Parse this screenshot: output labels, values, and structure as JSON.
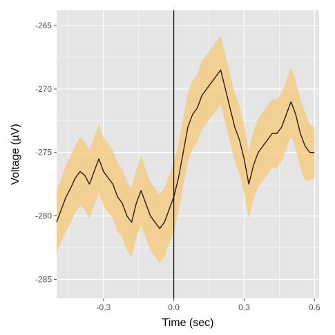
{
  "chart_data": {
    "type": "line",
    "xlabel": "Time (sec)",
    "ylabel": "Voltage (µV)",
    "xlim": [
      -0.5,
      0.62
    ],
    "ylim": [
      -286.5,
      -263.8
    ],
    "x_ticks": [
      -0.3,
      0.0,
      0.3,
      0.6
    ],
    "x_tick_labels": [
      "-0.3",
      "0.0",
      "0.3",
      "0.6"
    ],
    "y_ticks": [
      -265,
      -270,
      -275,
      -280,
      -285
    ],
    "y_tick_labels": [
      "-265",
      "-270",
      "-275",
      "-280",
      "-285"
    ],
    "grid": true,
    "legend": "none",
    "vline_x": 0.0,
    "series": [
      {
        "x": [
          -0.5,
          -0.48,
          -0.46,
          -0.44,
          -0.42,
          -0.4,
          -0.38,
          -0.36,
          -0.34,
          -0.32,
          -0.3,
          -0.28,
          -0.26,
          -0.24,
          -0.22,
          -0.2,
          -0.18,
          -0.16,
          -0.14,
          -0.12,
          -0.1,
          -0.08,
          -0.06,
          -0.04,
          -0.02,
          0.0,
          0.02,
          0.04,
          0.06,
          0.08,
          0.1,
          0.12,
          0.14,
          0.16,
          0.18,
          0.2,
          0.22,
          0.24,
          0.26,
          0.28,
          0.3,
          0.32,
          0.34,
          0.36,
          0.38,
          0.4,
          0.42,
          0.44,
          0.46,
          0.48,
          0.5,
          0.52,
          0.54,
          0.56,
          0.58,
          0.6
        ],
        "y": [
          -280.5,
          -279.5,
          -278.5,
          -277.8,
          -277.0,
          -276.5,
          -276.8,
          -277.5,
          -276.5,
          -275.5,
          -276.5,
          -277.0,
          -277.5,
          -278.5,
          -279.0,
          -280.0,
          -280.5,
          -279.0,
          -278.0,
          -279.0,
          -280.0,
          -280.5,
          -281.0,
          -280.5,
          -279.5,
          -278.5,
          -277.0,
          -275.0,
          -273.0,
          -272.0,
          -271.5,
          -270.5,
          -270.0,
          -269.5,
          -269.0,
          -268.5,
          -270.0,
          -271.5,
          -273.0,
          -274.0,
          -275.5,
          -277.5,
          -276.0,
          -275.0,
          -274.5,
          -274.0,
          -273.5,
          -273.5,
          -273.0,
          -272.0,
          -271.0,
          -272.0,
          -273.5,
          -274.5,
          -275.0,
          -275.0
        ],
        "lower": [
          -283.0,
          -282.0,
          -281.2,
          -280.5,
          -279.7,
          -279.2,
          -279.5,
          -280.2,
          -279.2,
          -278.2,
          -279.2,
          -279.7,
          -280.2,
          -281.2,
          -281.7,
          -282.7,
          -283.2,
          -281.7,
          -280.7,
          -281.7,
          -282.7,
          -283.2,
          -283.7,
          -283.2,
          -282.2,
          -281.2,
          -279.7,
          -277.7,
          -275.7,
          -274.7,
          -274.2,
          -273.2,
          -272.7,
          -272.2,
          -271.7,
          -271.2,
          -272.7,
          -274.2,
          -275.7,
          -276.7,
          -278.2,
          -280.2,
          -278.7,
          -277.7,
          -277.2,
          -276.7,
          -276.2,
          -276.2,
          -275.7,
          -274.7,
          -273.7,
          -274.7,
          -276.2,
          -277.2,
          -277.2,
          -277.0
        ],
        "upper": [
          -278.0,
          -277.0,
          -276.0,
          -275.2,
          -274.4,
          -273.8,
          -274.1,
          -274.8,
          -273.8,
          -272.8,
          -273.8,
          -274.3,
          -274.8,
          -275.8,
          -276.3,
          -277.3,
          -277.8,
          -276.3,
          -275.3,
          -276.3,
          -277.3,
          -277.8,
          -278.3,
          -277.8,
          -276.8,
          -275.8,
          -274.3,
          -272.3,
          -270.3,
          -269.3,
          -268.8,
          -267.8,
          -267.3,
          -266.8,
          -266.3,
          -265.8,
          -267.3,
          -268.8,
          -270.3,
          -271.3,
          -272.8,
          -274.8,
          -273.3,
          -272.3,
          -271.8,
          -271.3,
          -270.8,
          -270.8,
          -270.3,
          -269.3,
          -268.3,
          -269.3,
          -270.8,
          -271.8,
          -272.8,
          -273.0
        ]
      }
    ],
    "colors": {
      "panel_background": "#e5e5e5",
      "grid": "#ffffff",
      "band": "#f5c878",
      "line": "#2b1a00",
      "vline": "#000000"
    }
  }
}
